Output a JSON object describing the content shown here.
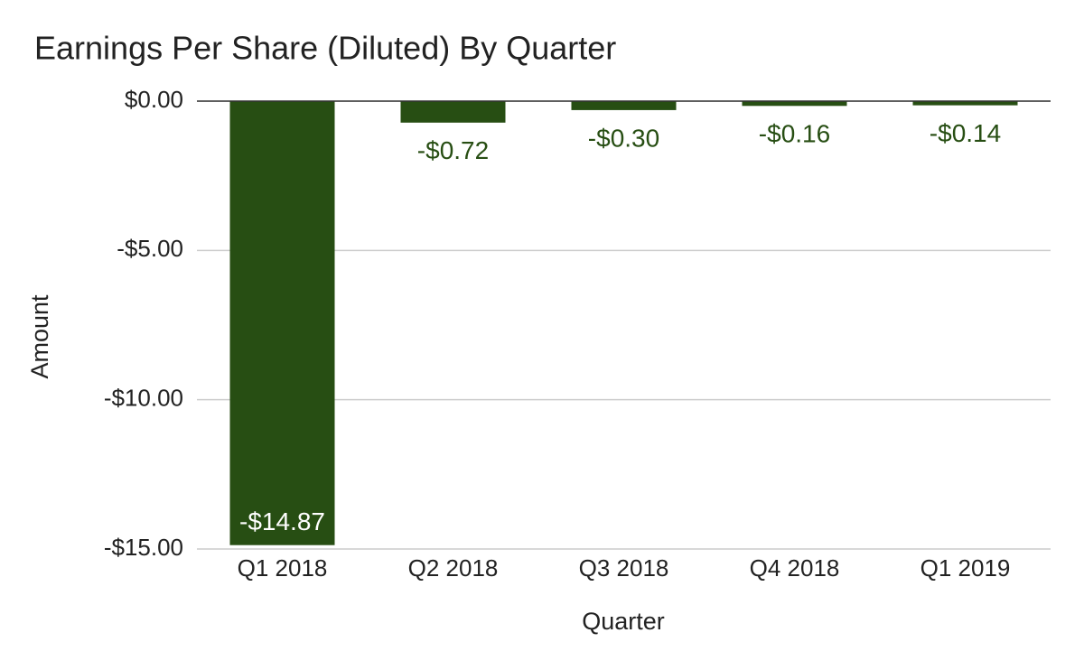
{
  "chart_data": {
    "type": "bar",
    "title": "Earnings Per Share (Diluted) By Quarter",
    "x_label": "Quarter",
    "y_label": "Amount",
    "categories": [
      "Q1 2018",
      "Q2 2018",
      "Q3 2018",
      "Q4 2018",
      "Q1 2019"
    ],
    "values": [
      -14.87,
      -0.72,
      -0.3,
      -0.16,
      -0.14
    ],
    "value_labels": [
      "-$14.87",
      "-$0.72",
      "-$0.30",
      "-$0.16",
      "-$0.14"
    ],
    "color": "#274e13",
    "ylim": [
      -15,
      0
    ],
    "yticks": [
      {
        "value": 0,
        "label": "$0.00"
      },
      {
        "value": -5,
        "label": "-$5.00"
      },
      {
        "value": -10,
        "label": "-$10.00"
      },
      {
        "value": -15,
        "label": "-$15.00"
      }
    ],
    "grid": true
  }
}
